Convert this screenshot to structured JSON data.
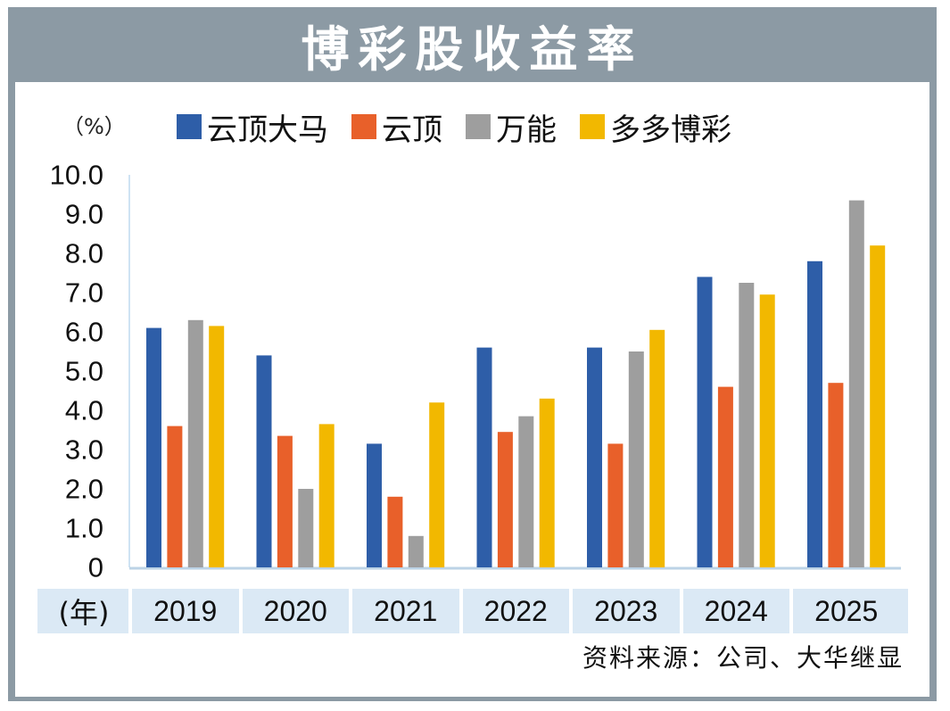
{
  "chart_data": {
    "type": "bar",
    "title": "博彩股收益率",
    "unit_label": "（%）",
    "xlabel": "(年)",
    "categories": [
      "2019",
      "2020",
      "2021",
      "2022",
      "2023",
      "2024",
      "2025"
    ],
    "series": [
      {
        "name": "云顶大马",
        "color": "#2e5ea8",
        "values": [
          6.1,
          5.4,
          3.15,
          5.6,
          5.6,
          7.4,
          7.8
        ]
      },
      {
        "name": "云顶",
        "color": "#e8602a",
        "values": [
          3.6,
          3.35,
          1.8,
          3.45,
          3.15,
          4.6,
          4.7
        ]
      },
      {
        "name": "万能",
        "color": "#9e9e9e",
        "values": [
          6.3,
          2.0,
          0.8,
          3.85,
          5.5,
          7.25,
          9.35
        ]
      },
      {
        "name": "多多博彩",
        "color": "#f2b800",
        "values": [
          6.15,
          3.65,
          4.2,
          4.3,
          6.05,
          6.95,
          8.2
        ]
      }
    ],
    "yticks": [
      "10.0",
      "9.0",
      "8.0",
      "7.0",
      "6.0",
      "5.0",
      "4.0",
      "3.0",
      "2.0",
      "1.0",
      "0"
    ],
    "ylim": [
      0,
      10
    ],
    "grid": false,
    "legend_position": "top"
  },
  "source": "资料来源：公司、大华继显"
}
